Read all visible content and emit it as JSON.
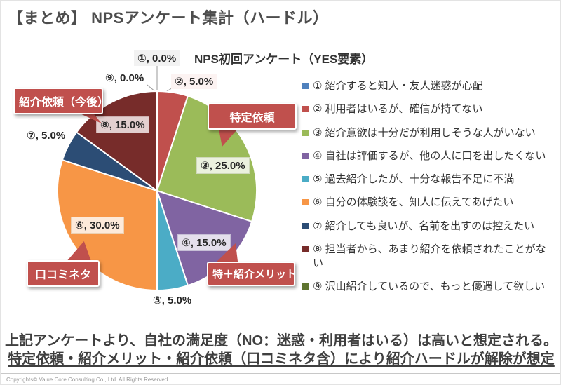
{
  "slide": {
    "title": "【まとめ】 NPSアンケート集計（ハードル）"
  },
  "chart_data": {
    "type": "pie",
    "title": "NPS初回アンケート（YES要素）",
    "unit": "%",
    "direction": "clockwise",
    "start_angle_deg": 0,
    "legend_position": "right",
    "slices": [
      {
        "num": "①",
        "legend": "紹介すると知人・友人迷惑が心配",
        "value": 0.0,
        "color": "#4F81BD",
        "data_label": "①, 0.0%"
      },
      {
        "num": "②",
        "legend": "利用者はいるが、確信が持てない",
        "value": 5.0,
        "color": "#C0504D",
        "data_label": "②, 5.0%"
      },
      {
        "num": "③",
        "legend": "紹介意欲は十分だが利用しそうな人がいない",
        "value": 25.0,
        "color": "#9BBB59",
        "data_label": "③, 25.0%"
      },
      {
        "num": "④",
        "legend": "自社は評価するが、他の人に口を出したくない",
        "value": 15.0,
        "color": "#8064A2",
        "data_label": "④, 15.0%"
      },
      {
        "num": "⑤",
        "legend": "過去紹介したが、十分な報告不足に不満",
        "value": 5.0,
        "color": "#4BACC6",
        "data_label": "⑤, 5.0%"
      },
      {
        "num": "⑥",
        "legend": "自分の体験談を、知人に伝えてあげたい",
        "value": 30.0,
        "color": "#F79646",
        "data_label": "⑥, 30.0%"
      },
      {
        "num": "⑦",
        "legend": "紹介しても良いが、名前を出すのは控えたい",
        "value": 5.0,
        "color": "#2C4D75",
        "data_label": "⑦, 5.0%"
      },
      {
        "num": "⑧",
        "legend": "担当者から、あまり紹介を依頼されたことがない",
        "value": 15.0,
        "color": "#772C2A",
        "data_label": "⑧, 15.0%"
      },
      {
        "num": "⑨",
        "legend": "沢山紹介しているので、もっと優遇して欲しい",
        "value": 0.0,
        "color": "#5F7530",
        "data_label": "⑨, 0.0%"
      }
    ]
  },
  "callouts": {
    "referral_future": "紹介依頼（今後）",
    "specific_request": "特定依頼",
    "word_of_mouth": "口コミネタ",
    "special_referral_merit": "特＋紹介メリット"
  },
  "summary": {
    "line1": "上記アンケートより、自社の満足度（NO：迷惑・利用者はいる）は高いと想定される。",
    "line2": "特定依頼・紹介メリット・紹介依頼（口コミネタ含）により紹介ハードルが解除が想定"
  },
  "footer": {
    "copyright": "Copyrights© Value Core Consulting Co., Ltd.  All Rights Reserved."
  },
  "colors": {
    "callout_red": "#C0504D",
    "title_gray": "#4D4D4D"
  }
}
